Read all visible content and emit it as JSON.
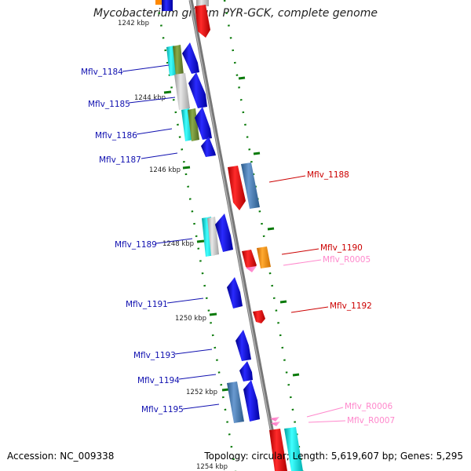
{
  "title": "Mycobacterium gilvum PYR-GCK, complete genome",
  "footer": {
    "accession": "Accession: NC_009338",
    "summary": "Topology: circular; Length: 5,619,607 bp; Genes: 5,295"
  },
  "colors": {
    "backbone": "#8a8a8a",
    "plus_label": "#1010b0",
    "minus_label": "#cc0000",
    "rna_label": "#ff88cc",
    "tick": "#0a7a0a"
  },
  "scale_labels": [
    "1242 kbp",
    "1244 kbp",
    "1246 kbp",
    "1248 kbp",
    "1250 kbp",
    "1252 kbp",
    "1254 kbp"
  ],
  "gene_labels": {
    "plus": [
      "Mflv_1184",
      "Mflv_1185",
      "Mflv_1186",
      "Mflv_1187",
      "Mflv_1189",
      "Mflv_1191",
      "Mflv_1193",
      "Mflv_1194",
      "Mflv_1195"
    ],
    "minus": [
      "Mflv_1188",
      "Mflv_1190",
      "Mflv_1192"
    ],
    "rna": [
      "Mflv_R0005",
      "Mflv_R0006",
      "Mflv_R0007"
    ]
  }
}
